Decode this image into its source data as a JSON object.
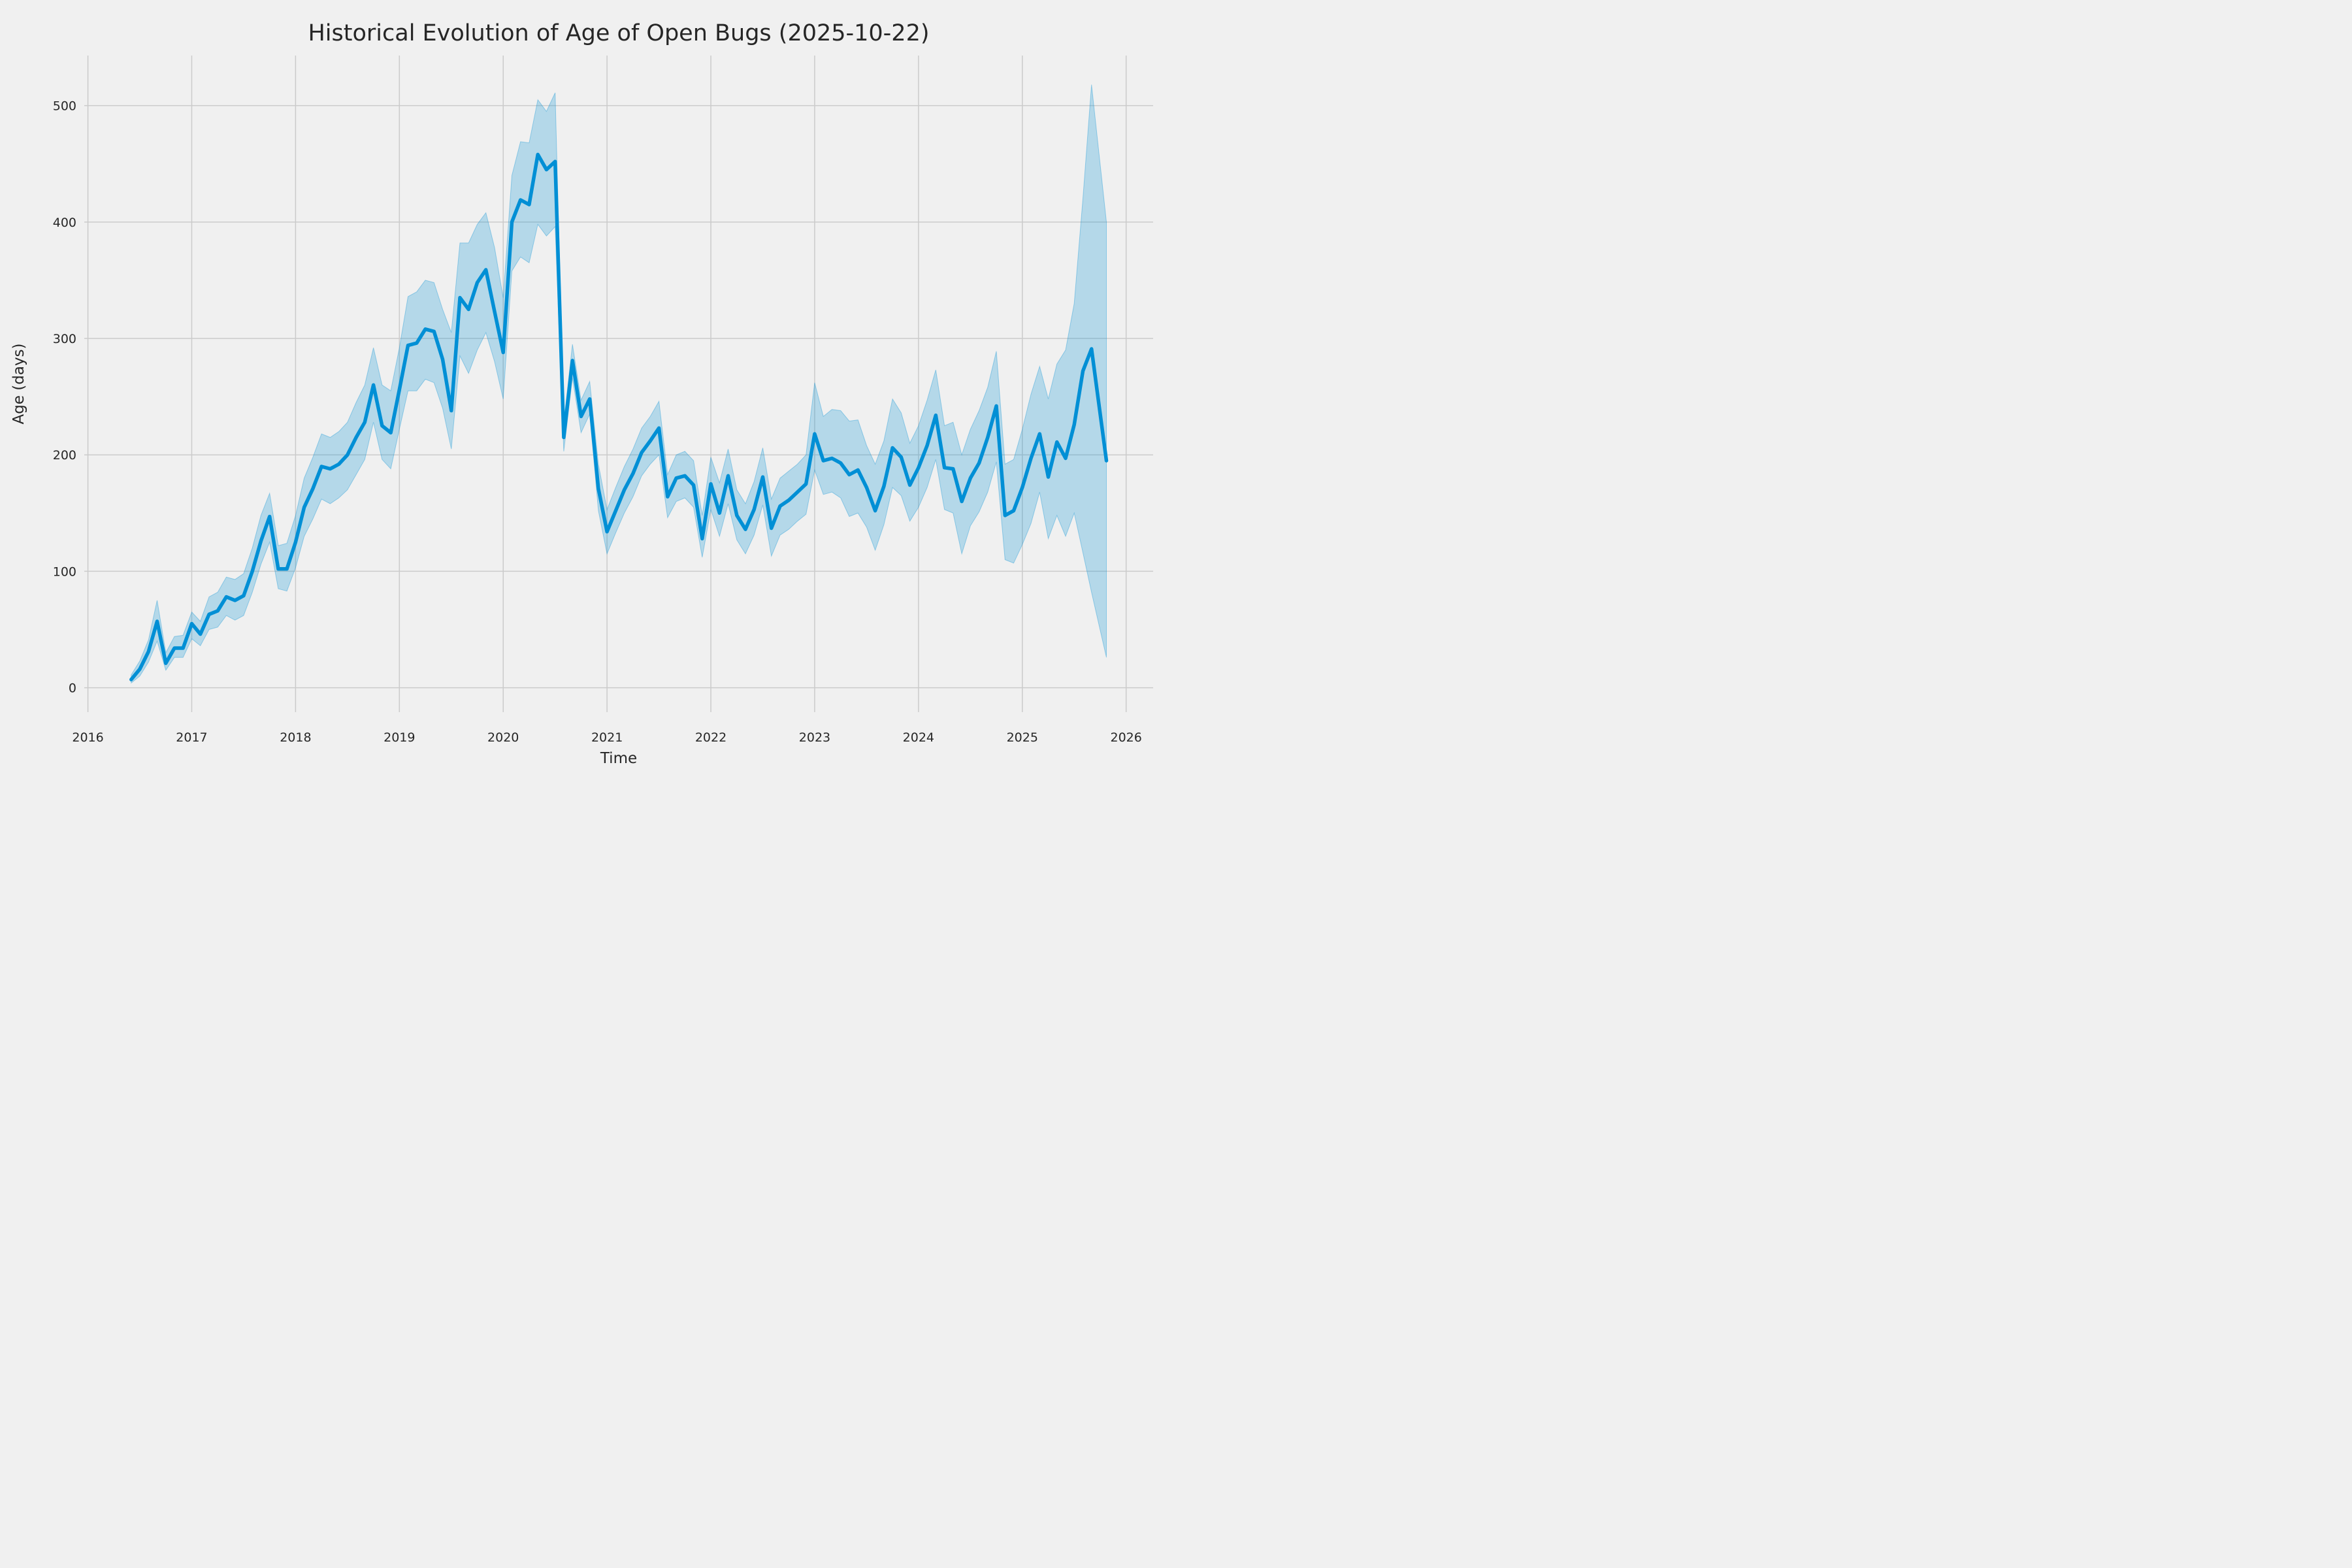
{
  "figure": {
    "title": "Historical Evolution of Age of Open Bugs (2025-10-22)",
    "x_axis_label": "Time",
    "y_axis_label": "Age (days)"
  },
  "colors": {
    "background": "#f0f0f0",
    "grid": "#cbcbcb",
    "line": "#008fd5",
    "band_fill": "rgba(0,143,213,0.25)",
    "band_edge": "rgba(0,143,213,0.35)",
    "text": "#262626"
  },
  "chart_data": {
    "type": "line",
    "title": "Historical Evolution of Age of Open Bugs (2025-10-22)",
    "xlabel": "Time",
    "ylabel": "Age (days)",
    "grid": true,
    "legend_position": "none",
    "x_ticks": [
      2016,
      2017,
      2018,
      2019,
      2020,
      2021,
      2022,
      2023,
      2024,
      2025,
      2026
    ],
    "y_ticks": [
      0,
      100,
      200,
      300,
      400,
      500
    ],
    "xlim": [
      2015.965,
      2026.26
    ],
    "ylim": [
      -21,
      543
    ],
    "x_start": 2016.4167,
    "x_step": 0.083333,
    "x_last": 2025.81,
    "x_unit": "decimal-year, monthly points from 2016-06 to 2025-10-22",
    "series": [
      {
        "name": "mean-open-bug-age-days",
        "values": [
          7,
          16,
          31,
          57,
          21,
          34,
          34,
          55,
          46,
          63,
          66,
          78,
          75,
          79,
          100,
          126,
          147,
          102,
          102,
          125,
          155,
          171,
          190,
          188,
          192,
          200,
          215,
          228,
          260,
          225,
          219,
          256,
          294,
          296,
          308,
          306,
          282,
          238,
          335,
          325,
          348,
          359,
          323,
          288,
          400,
          419,
          415,
          458,
          445,
          452,
          215,
          281,
          233,
          248,
          171,
          134,
          152,
          170,
          184,
          202,
          212,
          223,
          164,
          180,
          182,
          174,
          128,
          175,
          150,
          182,
          148,
          136,
          153,
          181,
          137,
          156,
          161,
          168,
          175,
          218,
          195,
          197,
          193,
          183,
          187,
          172,
          152,
          173,
          206,
          198,
          174,
          189,
          208,
          234,
          189,
          188,
          160,
          180,
          193,
          215,
          242,
          148,
          152,
          172,
          197,
          218,
          181,
          211,
          197,
          226,
          272,
          291,
          195
        ]
      },
      {
        "name": "confidence-band-lower",
        "values": [
          4,
          10,
          22,
          40,
          15,
          26,
          26,
          42,
          36,
          50,
          52,
          62,
          58,
          62,
          82,
          106,
          125,
          85,
          83,
          103,
          130,
          145,
          162,
          158,
          163,
          170,
          183,
          196,
          228,
          196,
          188,
          222,
          255,
          255,
          265,
          262,
          240,
          205,
          285,
          270,
          290,
          305,
          280,
          248,
          358,
          370,
          365,
          398,
          388,
          396,
          203,
          266,
          219,
          235,
          152,
          115,
          133,
          150,
          164,
          182,
          192,
          200,
          146,
          160,
          163,
          155,
          112,
          153,
          130,
          158,
          127,
          115,
          131,
          157,
          113,
          131,
          136,
          143,
          149,
          187,
          166,
          168,
          163,
          147,
          150,
          138,
          118,
          140,
          172,
          165,
          143,
          155,
          172,
          196,
          153,
          150,
          115,
          139,
          151,
          168,
          194,
          110,
          107,
          123,
          141,
          168,
          128,
          148,
          130,
          150,
          116,
          82,
          26
        ]
      },
      {
        "name": "confidence-band-upper",
        "values": [
          11,
          23,
          41,
          75,
          30,
          44,
          45,
          65,
          57,
          78,
          82,
          95,
          93,
          98,
          120,
          148,
          167,
          122,
          124,
          148,
          180,
          198,
          218,
          215,
          220,
          228,
          245,
          260,
          292,
          260,
          255,
          292,
          336,
          340,
          350,
          348,
          325,
          305,
          382,
          382,
          398,
          408,
          378,
          335,
          440,
          469,
          468,
          505,
          495,
          511,
          228,
          295,
          247,
          263,
          192,
          153,
          172,
          190,
          205,
          223,
          233,
          246,
          183,
          200,
          203,
          195,
          148,
          198,
          176,
          205,
          170,
          158,
          177,
          206,
          162,
          180,
          186,
          192,
          200,
          262,
          233,
          239,
          238,
          229,
          230,
          208,
          192,
          212,
          248,
          236,
          210,
          225,
          247,
          273,
          225,
          228,
          200,
          222,
          238,
          258,
          289,
          192,
          196,
          222,
          252,
          276,
          248,
          278,
          290,
          330,
          420,
          518,
          400
        ]
      }
    ]
  }
}
